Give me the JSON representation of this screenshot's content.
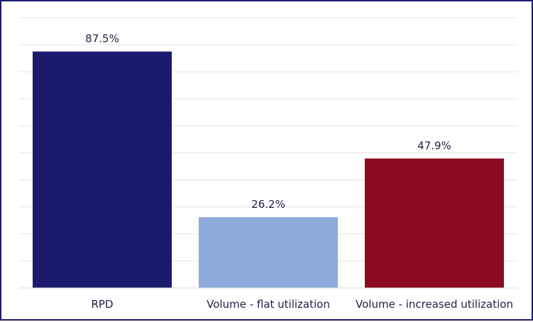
{
  "chart_data": {
    "type": "bar",
    "categories": [
      "RPD",
      "Volume - flat utilization",
      "Volume - increased utilization"
    ],
    "values": [
      87.5,
      26.2,
      47.9
    ],
    "value_labels": [
      "87.5%",
      "26.2%",
      "47.9%"
    ],
    "colors": [
      "#1b1b6e",
      "#8eaadb",
      "#8b0a20"
    ],
    "title": "",
    "xlabel": "",
    "ylabel": "",
    "ylim": [
      0,
      100
    ],
    "grid": true,
    "legend": "none"
  }
}
